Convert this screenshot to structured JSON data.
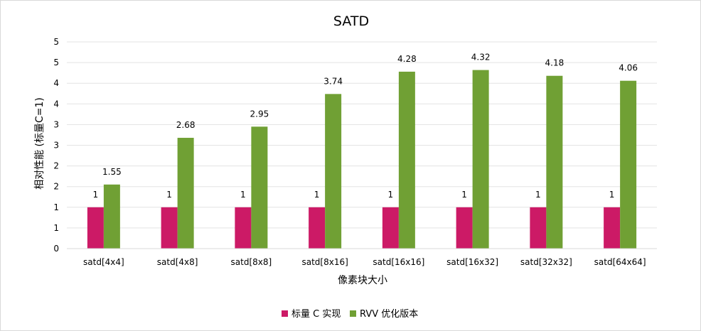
{
  "chart_data": {
    "type": "bar",
    "title": "SATD",
    "xlabel": "像素块大小",
    "ylabel": "相对性能 (标量C=1)",
    "categories": [
      "satd[4x4]",
      "satd[4x8]",
      "satd[8x8]",
      "satd[8x16]",
      "satd[16x16]",
      "satd[16x32]",
      "satd[32x32]",
      "satd[64x64]"
    ],
    "ytick_labels": [
      "0",
      "1",
      "1",
      "2",
      "2",
      "3",
      "3",
      "4",
      "4",
      "5",
      "5"
    ],
    "ylim": [
      0,
      5
    ],
    "grid": true,
    "legend_position": "bottom",
    "series": [
      {
        "name": "标量 C 实现",
        "color": "#cc1a66",
        "values": [
          1,
          1,
          1,
          1,
          1,
          1,
          1,
          1
        ],
        "labels": [
          "1",
          "1",
          "1",
          "1",
          "1",
          "1",
          "1",
          "1"
        ]
      },
      {
        "name": "RVV 优化版本",
        "color": "#70a034",
        "values": [
          1.55,
          2.68,
          2.95,
          3.74,
          4.28,
          4.32,
          4.18,
          4.06
        ],
        "labels": [
          "1.55",
          "2.68",
          "2.95",
          "3.74",
          "4.28",
          "4.32",
          "4.18",
          "4.06"
        ]
      }
    ]
  }
}
